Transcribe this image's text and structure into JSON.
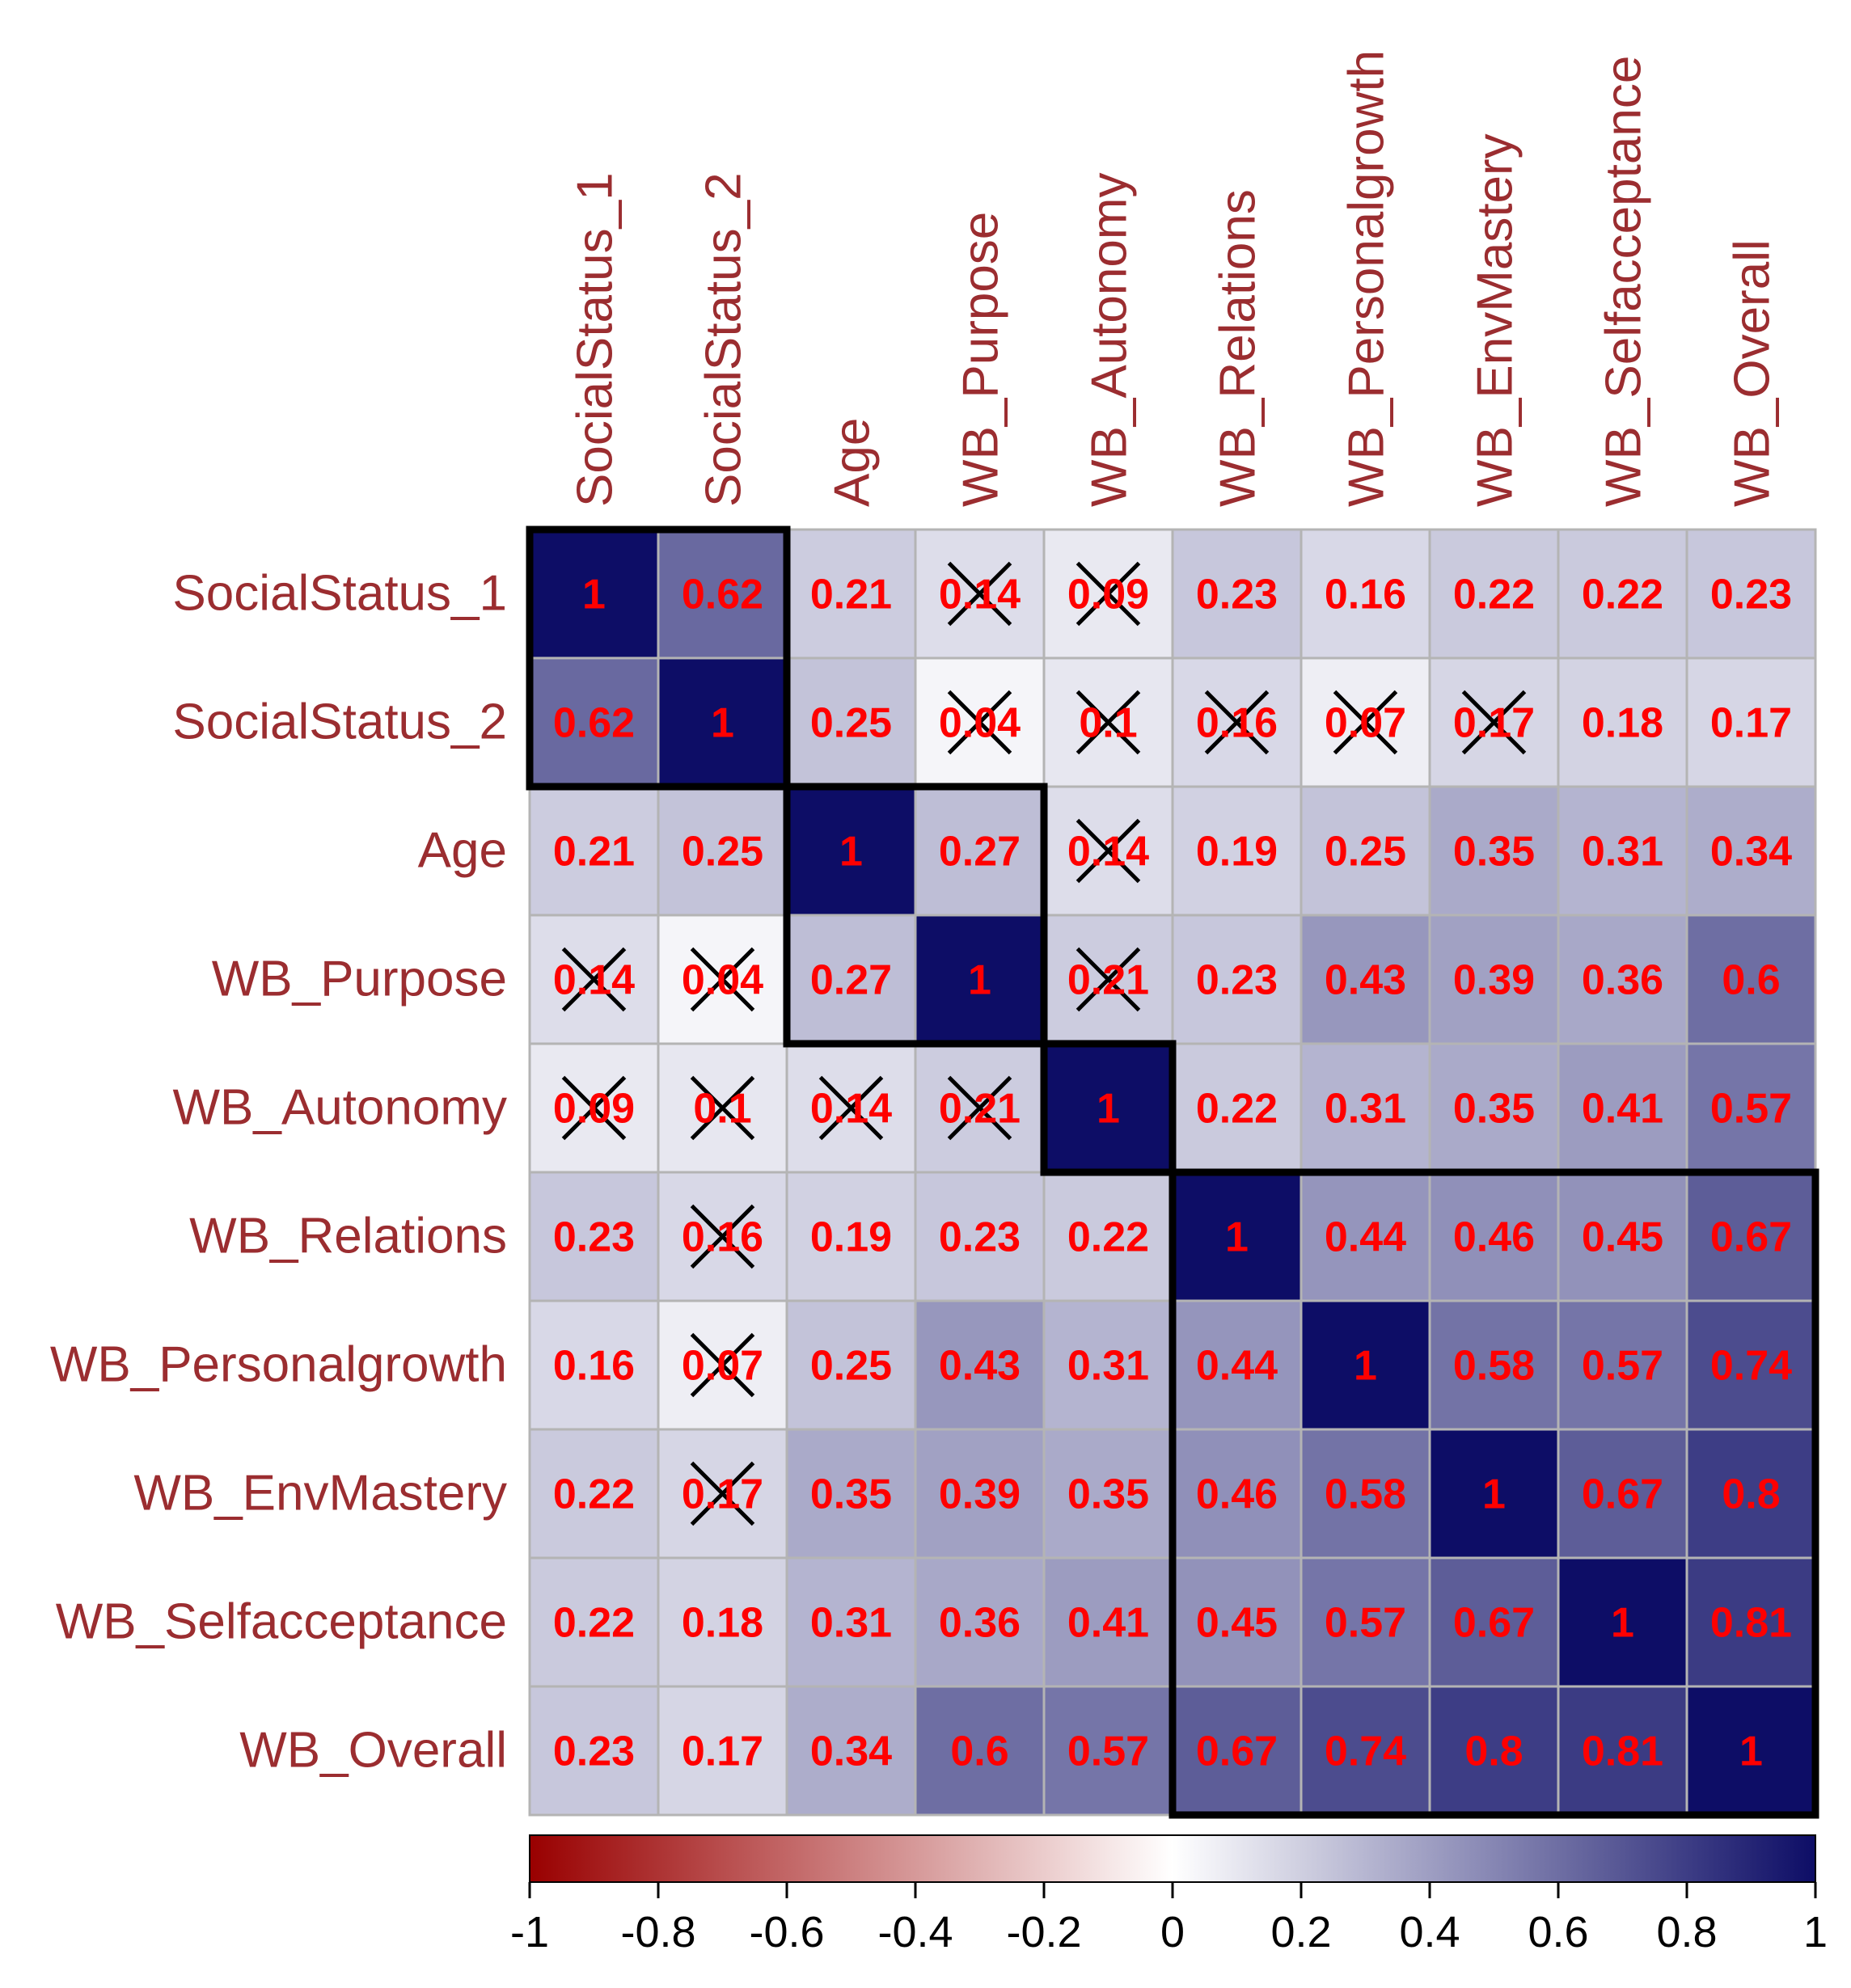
{
  "chart_data": {
    "type": "heatmap",
    "title": "",
    "variables": [
      "SocialStatus_1",
      "SocialStatus_2",
      "Age",
      "WB_Purpose",
      "WB_Autonomy",
      "WB_Relations",
      "WB_Personalgrowth",
      "WB_EnvMastery",
      "WB_Selfacceptance",
      "WB_Overall"
    ],
    "matrix": [
      [
        1,
        0.62,
        0.21,
        0.14,
        0.09,
        0.23,
        0.16,
        0.22,
        0.22,
        0.23
      ],
      [
        0.62,
        1,
        0.25,
        0.04,
        0.1,
        0.16,
        0.07,
        0.17,
        0.18,
        0.17
      ],
      [
        0.21,
        0.25,
        1,
        0.27,
        0.14,
        0.19,
        0.25,
        0.35,
        0.31,
        0.34
      ],
      [
        0.14,
        0.04,
        0.27,
        1,
        0.21,
        0.23,
        0.43,
        0.39,
        0.36,
        0.6
      ],
      [
        0.09,
        0.1,
        0.14,
        0.21,
        1,
        0.22,
        0.31,
        0.35,
        0.41,
        0.57
      ],
      [
        0.23,
        0.16,
        0.19,
        0.23,
        0.22,
        1,
        0.44,
        0.46,
        0.45,
        0.67
      ],
      [
        0.16,
        0.07,
        0.25,
        0.43,
        0.31,
        0.44,
        1,
        0.58,
        0.57,
        0.74
      ],
      [
        0.22,
        0.17,
        0.35,
        0.39,
        0.35,
        0.46,
        0.58,
        1,
        0.67,
        0.8
      ],
      [
        0.22,
        0.18,
        0.31,
        0.36,
        0.41,
        0.45,
        0.57,
        0.67,
        1,
        0.81
      ],
      [
        0.23,
        0.17,
        0.34,
        0.6,
        0.57,
        0.67,
        0.74,
        0.8,
        0.81,
        1
      ]
    ],
    "labels": [
      [
        "1",
        "0.62",
        "0.21",
        "0.14",
        "0.09",
        "0.23",
        "0.16",
        "0.22",
        "0.22",
        "0.23"
      ],
      [
        "0.62",
        "1",
        "0.25",
        "0.04",
        "0.1",
        "0.16",
        "0.07",
        "0.17",
        "0.18",
        "0.17"
      ],
      [
        "0.21",
        "0.25",
        "1",
        "0.27",
        "0.14",
        "0.19",
        "0.25",
        "0.35",
        "0.31",
        "0.34"
      ],
      [
        "0.14",
        "0.04",
        "0.27",
        "1",
        "0.21",
        "0.23",
        "0.43",
        "0.39",
        "0.36",
        "0.6"
      ],
      [
        "0.09",
        "0.1",
        "0.14",
        "0.21",
        "1",
        "0.22",
        "0.31",
        "0.35",
        "0.41",
        "0.57"
      ],
      [
        "0.23",
        "0.16",
        "0.19",
        "0.23",
        "0.22",
        "1",
        "0.44",
        "0.46",
        "0.45",
        "0.67"
      ],
      [
        "0.16",
        "0.07",
        "0.25",
        "0.43",
        "0.31",
        "0.44",
        "1",
        "0.58",
        "0.57",
        "0.74"
      ],
      [
        "0.22",
        "0.17",
        "0.35",
        "0.39",
        "0.35",
        "0.46",
        "0.58",
        "1",
        "0.67",
        "0.8"
      ],
      [
        "0.22",
        "0.18",
        "0.31",
        "0.36",
        "0.41",
        "0.45",
        "0.57",
        "0.67",
        "1",
        "0.81"
      ],
      [
        "0.23",
        "0.17",
        "0.34",
        "0.6",
        "0.57",
        "0.67",
        "0.74",
        "0.8",
        "0.81",
        "1"
      ]
    ],
    "nonsignificant": [
      [
        0,
        3
      ],
      [
        0,
        4
      ],
      [
        1,
        3
      ],
      [
        1,
        4
      ],
      [
        1,
        5
      ],
      [
        1,
        6
      ],
      [
        1,
        7
      ],
      [
        2,
        4
      ],
      [
        3,
        0
      ],
      [
        3,
        1
      ],
      [
        3,
        4
      ],
      [
        4,
        0
      ],
      [
        4,
        1
      ],
      [
        4,
        2
      ],
      [
        4,
        3
      ],
      [
        5,
        1
      ],
      [
        6,
        1
      ],
      [
        7,
        1
      ]
    ],
    "clusters": [
      {
        "from": "SocialStatus_1",
        "to": "SocialStatus_2"
      },
      {
        "from": "Age",
        "to": "WB_Purpose"
      },
      {
        "from": "WB_Autonomy",
        "to": "WB_Autonomy"
      },
      {
        "from": "WB_Relations",
        "to": "WB_Overall"
      }
    ],
    "colorbar": {
      "range": [
        -1,
        1
      ],
      "ticks": [
        -1,
        -0.8,
        -0.6,
        -0.4,
        -0.2,
        0,
        0.2,
        0.4,
        0.6,
        0.8,
        1
      ],
      "tick_labels": [
        "-1",
        "-0.8",
        "-0.6",
        "-0.4",
        "-0.2",
        "0",
        "0.2",
        "0.4",
        "0.6",
        "0.8",
        "1"
      ],
      "colors": [
        "#67001f",
        "#ffffff",
        "#000066"
      ],
      "position": "bottom"
    },
    "grid": true,
    "colors": {
      "var_label": "#9b2d30",
      "cell_label": "#ff0000",
      "cluster_outline": "#000000",
      "cell_border": "#b4b4b4",
      "low": "#990000",
      "mid": "#ffffff",
      "high": "#0d0d66"
    }
  }
}
